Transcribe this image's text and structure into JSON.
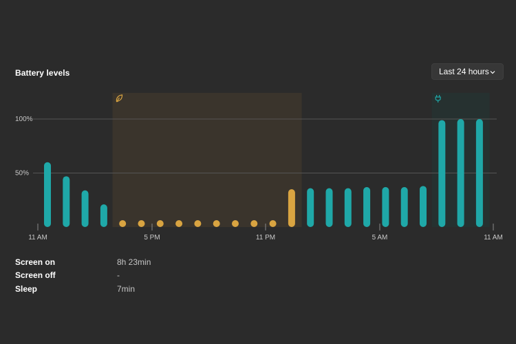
{
  "section_title": "Battery levels",
  "range_select": {
    "value": "Last 24 hours"
  },
  "colors": {
    "background": "#2b2b2b",
    "battery_bar": "#1fa8a8",
    "saver_bar": "#d9a441",
    "saver_region": "#3a342c",
    "charging_region": "#263130",
    "gridline": "#555555",
    "axis_text": "#c8c8c8"
  },
  "chart_data": {
    "type": "bar",
    "title": "",
    "xlabel": "",
    "ylabel": "",
    "ylim": [
      0,
      100
    ],
    "y_ticks": [
      "50%",
      "100%"
    ],
    "x_ticks": [
      "11 AM",
      "5 PM",
      "11 PM",
      "5 AM",
      "11 AM"
    ],
    "grid": true,
    "regions": [
      {
        "name": "battery-saver",
        "icon": "battery-saver-leaf-icon",
        "from_bar": 4,
        "to_bar": 13
      },
      {
        "name": "charging",
        "icon": "charging-plug-icon",
        "from_bar": 21,
        "to_bar": 23
      }
    ],
    "values": [
      60,
      47,
      34,
      21,
      6,
      4,
      4,
      4,
      4,
      4,
      4,
      4,
      6,
      35,
      36,
      36,
      36,
      37,
      37,
      37,
      38,
      99,
      100,
      100
    ],
    "modes": [
      "normal",
      "normal",
      "normal",
      "normal",
      "saver",
      "saver",
      "saver",
      "saver",
      "saver",
      "saver",
      "saver",
      "saver",
      "saver",
      "saver",
      "normal",
      "normal",
      "normal",
      "normal",
      "normal",
      "normal",
      "normal",
      "normal",
      "normal",
      "normal"
    ]
  },
  "stats": [
    {
      "label": "Screen on",
      "value": "8h 23min"
    },
    {
      "label": "Screen off",
      "value": "-"
    },
    {
      "label": "Sleep",
      "value": "7min"
    }
  ]
}
